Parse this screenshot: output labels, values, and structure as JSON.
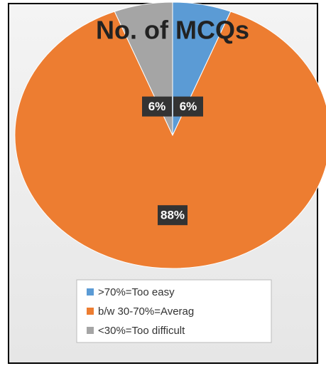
{
  "chart_data": {
    "type": "pie",
    "title": "No. of MCQs",
    "categories": [
      ">70%=Too easy",
      "b/w 30-70%=Averag",
      "<30%=Too difficult"
    ],
    "values": [
      6,
      88,
      6
    ],
    "value_labels": [
      "6%",
      "88%",
      "6%"
    ],
    "colors": [
      "#5b9bd5",
      "#ed7d31",
      "#a5a5a5"
    ],
    "legend": "bottom"
  }
}
